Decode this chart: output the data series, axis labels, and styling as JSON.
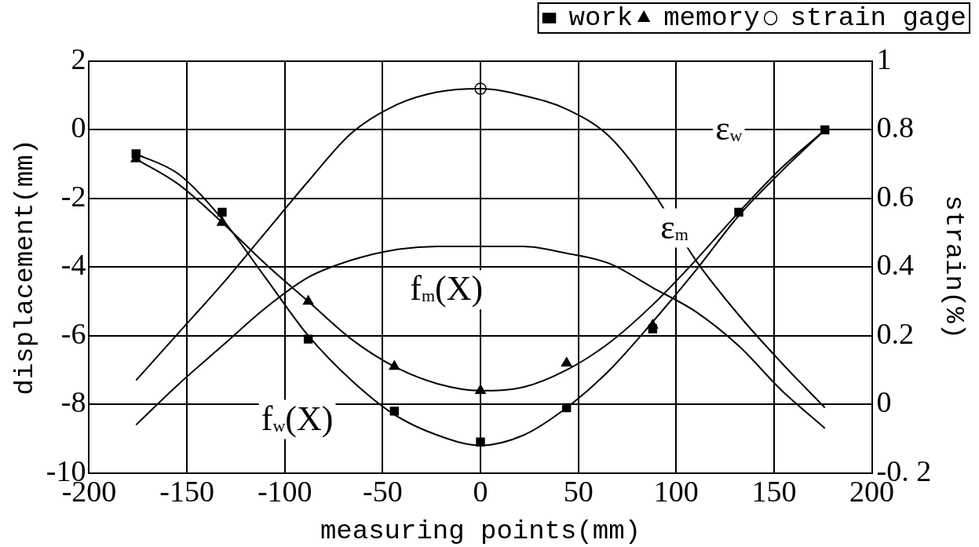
{
  "chart_data": {
    "type": "line",
    "xlabel": "measuring points(mm)",
    "ylabel": "displacement(mm)",
    "y2label": "strain(%)",
    "xlim": [
      -200,
      200
    ],
    "xticks": [
      -200,
      -150,
      -100,
      -50,
      0,
      50,
      100,
      150,
      200
    ],
    "ylim": [
      -10,
      2
    ],
    "yticks": [
      -10,
      -8,
      -6,
      -4,
      -2,
      0,
      2
    ],
    "y2lim": [
      -0.2,
      1
    ],
    "y2ticks": [
      {
        "value": -0.2,
        "label": "-0. 2"
      },
      0,
      0.2,
      0.4,
      0.6,
      0.8,
      1
    ],
    "grid": true,
    "legend": "top right",
    "series": [
      {
        "name": "work",
        "type": "scatter",
        "marker": "square",
        "color": "#000000",
        "x": [
          -176,
          -132,
          -88,
          -44,
          0,
          44,
          88,
          132,
          176
        ],
        "values": [
          -0.7,
          -2.4,
          -6.1,
          -8.2,
          -9.1,
          -8.1,
          -5.8,
          -2.4,
          0
        ]
      },
      {
        "name": "memory",
        "type": "scatter",
        "marker": "triangle",
        "color": "#000000",
        "x": [
          -176,
          -132,
          -88,
          -44,
          0,
          44,
          88
        ],
        "values": [
          -0.85,
          -2.7,
          -5.0,
          -6.9,
          -7.6,
          -6.8,
          -5.7
        ]
      },
      {
        "name": "strain gage",
        "type": "scatter",
        "marker": "circle",
        "axis": "y2",
        "color": "#000000",
        "x": [
          0
        ],
        "values": [
          0.92
        ]
      },
      {
        "type": "line",
        "marker": "none",
        "line_style": "solid",
        "color": "#000000",
        "x": [
          -176,
          -154,
          -132,
          -110,
          -88,
          -66,
          -44,
          -22,
          0,
          22,
          44,
          66,
          88,
          110,
          132,
          154,
          176
        ],
        "values": [
          -0.7,
          -1.3,
          -2.6,
          -4.3,
          -6.0,
          -7.3,
          -8.3,
          -8.9,
          -9.2,
          -8.9,
          -8.1,
          -7.0,
          -5.6,
          -4.1,
          -2.5,
          -1.2,
          0
        ]
      },
      {
        "type": "line",
        "marker": "none",
        "line_style": "solid",
        "color": "#000000",
        "x": [
          -176,
          -154,
          -132,
          -110,
          -88,
          -66,
          -44,
          -22,
          0,
          22,
          44,
          66,
          88,
          110,
          132,
          154,
          176
        ],
        "values": [
          -0.85,
          -1.6,
          -2.7,
          -3.9,
          -5.0,
          -6.1,
          -6.9,
          -7.4,
          -7.6,
          -7.5,
          -7.0,
          -6.2,
          -5.1,
          -3.8,
          -2.4,
          -1.1,
          0
        ]
      },
      {
        "type": "line",
        "marker": "none",
        "line_style": "solid",
        "axis": "y2",
        "color": "#000000",
        "x": [
          -176,
          -154,
          -132,
          -110,
          -88,
          -66,
          -44,
          -22,
          0,
          22,
          44,
          66,
          88,
          110,
          132,
          154,
          176
        ],
        "values": [
          0.07,
          0.21,
          0.35,
          0.5,
          0.65,
          0.79,
          0.87,
          0.91,
          0.92,
          0.9,
          0.86,
          0.78,
          0.62,
          0.42,
          0.26,
          0.12,
          -0.01
        ]
      },
      {
        "type": "line",
        "marker": "none",
        "line_style": "solid",
        "axis": "y2",
        "color": "#000000",
        "x": [
          -176,
          -154,
          -132,
          -110,
          -88,
          -66,
          -44,
          -22,
          0,
          22,
          44,
          66,
          88,
          110,
          132,
          154,
          176
        ],
        "values": [
          -0.06,
          0.06,
          0.17,
          0.28,
          0.37,
          0.42,
          0.45,
          0.46,
          0.46,
          0.46,
          0.44,
          0.41,
          0.34,
          0.27,
          0.17,
          0.04,
          -0.07
        ]
      }
    ],
    "annotations": [
      "ε$_{w}$",
      "ε$_{m}$",
      "f$_{m}$(X)",
      "f$_{w}$(X)"
    ]
  }
}
